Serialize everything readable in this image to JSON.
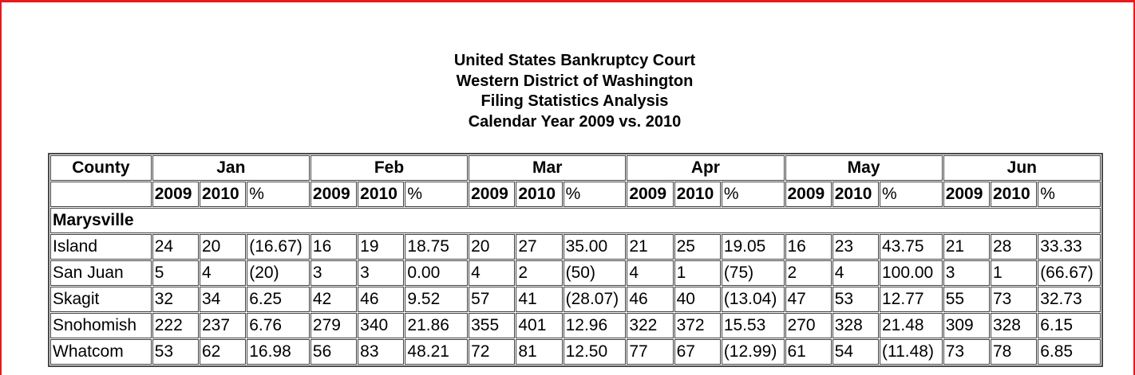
{
  "heading": {
    "line1": "United States Bankruptcy Court",
    "line2": "Western District of Washington",
    "line3": "Filing Statistics Analysis",
    "line4": "Calendar Year 2009 vs. 2010"
  },
  "table": {
    "county_header": "County",
    "months": [
      "Jan",
      "Feb",
      "Mar",
      "Apr",
      "May",
      "Jun"
    ],
    "sub_headers": {
      "y1": "2009",
      "y2": "2010",
      "pct": "%"
    },
    "group": "Marysville",
    "rows": [
      {
        "county": "Island",
        "cells": [
          "24",
          "20",
          "(16.67)",
          "16",
          "19",
          "18.75",
          "20",
          "27",
          "35.00",
          "21",
          "25",
          "19.05",
          "16",
          "23",
          "43.75",
          "21",
          "28",
          "33.33"
        ]
      },
      {
        "county": "San Juan",
        "cells": [
          "5",
          "4",
          "(20)",
          "3",
          "3",
          "0.00",
          "4",
          "2",
          "(50)",
          "4",
          "1",
          "(75)",
          "2",
          "4",
          "100.00",
          "3",
          "1",
          "(66.67)"
        ]
      },
      {
        "county": "Skagit",
        "cells": [
          "32",
          "34",
          "6.25",
          "42",
          "46",
          "9.52",
          "57",
          "41",
          "(28.07)",
          "46",
          "40",
          "(13.04)",
          "47",
          "53",
          "12.77",
          "55",
          "73",
          "32.73"
        ]
      },
      {
        "county": "Snohomish",
        "cells": [
          "222",
          "237",
          "6.76",
          "279",
          "340",
          "21.86",
          "355",
          "401",
          "12.96",
          "322",
          "372",
          "15.53",
          "270",
          "328",
          "21.48",
          "309",
          "328",
          "6.15"
        ]
      },
      {
        "county": "Whatcom",
        "cells": [
          "53",
          "62",
          "16.98",
          "56",
          "83",
          "48.21",
          "72",
          "81",
          "12.50",
          "77",
          "67",
          "(12.99)",
          "61",
          "54",
          "(11.48)",
          "73",
          "78",
          "6.85"
        ]
      }
    ]
  }
}
